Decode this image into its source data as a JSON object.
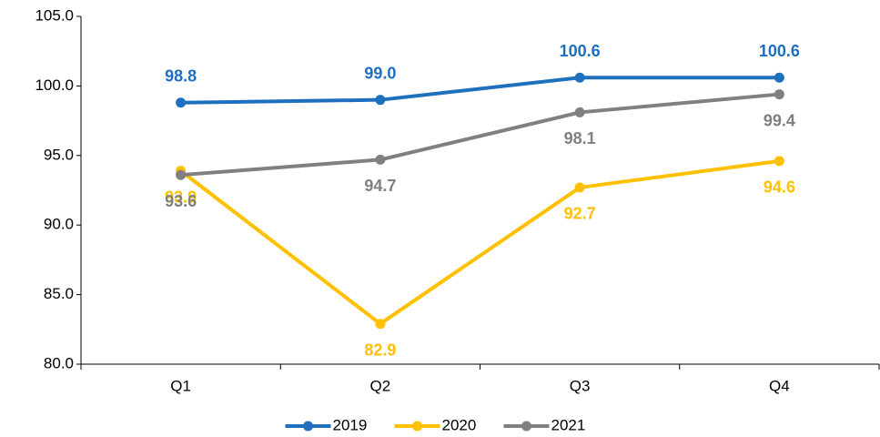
{
  "chart_data": {
    "type": "line",
    "categories": [
      "Q1",
      "Q2",
      "Q3",
      "Q4"
    ],
    "series": [
      {
        "name": "2019",
        "color": "#1f6fbf",
        "values": [
          98.8,
          99.0,
          100.6,
          100.6
        ],
        "value_labels": [
          "98.8",
          "99.0",
          "100.6",
          "100.6"
        ]
      },
      {
        "name": "2020",
        "color": "#ffc000",
        "values": [
          93.9,
          82.9,
          92.7,
          94.6
        ],
        "value_labels": [
          "93.9",
          "82.9",
          "92.7",
          "94.6"
        ]
      },
      {
        "name": "2021",
        "color": "#808080",
        "values": [
          93.6,
          94.7,
          98.1,
          99.4
        ],
        "value_labels": [
          "93.6",
          "94.7",
          "98.1",
          "99.4"
        ]
      }
    ],
    "ylim": [
      80,
      105
    ],
    "yticks": [
      {
        "value": 80,
        "label": "80.0"
      },
      {
        "value": 85,
        "label": "85.0"
      },
      {
        "value": 90,
        "label": "90.0"
      },
      {
        "value": 95,
        "label": "95.0"
      },
      {
        "value": 100,
        "label": "100.0"
      },
      {
        "value": 105,
        "label": "105.0"
      }
    ],
    "legend": "bottom"
  }
}
